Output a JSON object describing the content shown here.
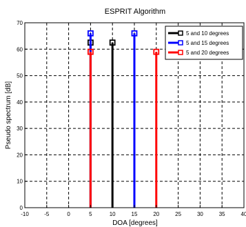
{
  "chart_data": {
    "type": "stem",
    "title": "ESPRIT Algorithm",
    "xlabel": "DOA [degrees]",
    "ylabel": "Pseudo spectrum [dB]",
    "xlim": [
      -10,
      40
    ],
    "ylim": [
      0,
      70
    ],
    "xticks": [
      -10,
      -5,
      0,
      5,
      10,
      15,
      20,
      25,
      30,
      35,
      40
    ],
    "yticks": [
      0,
      10,
      20,
      30,
      40,
      50,
      60,
      70
    ],
    "xtick_labels": [
      "-10",
      "-5",
      "0",
      "5",
      "10",
      "15",
      "20",
      "25",
      "30",
      "35",
      "40"
    ],
    "ytick_labels": [
      "0",
      "10",
      "20",
      "30",
      "40",
      "50",
      "60",
      "70"
    ],
    "grid": true,
    "grid_style": "dashed",
    "legend_position": "top-right",
    "series": [
      {
        "name": "5 and 10 degrees",
        "color": "#000000",
        "points": [
          {
            "x": 5,
            "y": 62.5
          },
          {
            "x": 10,
            "y": 62.5
          }
        ]
      },
      {
        "name": "5 and 15 degrees",
        "color": "#0000ff",
        "points": [
          {
            "x": 5,
            "y": 66
          },
          {
            "x": 15,
            "y": 66
          }
        ]
      },
      {
        "name": "5 and 20 degrees",
        "color": "#ff0000",
        "points": [
          {
            "x": 5,
            "y": 59
          },
          {
            "x": 20,
            "y": 59
          }
        ]
      }
    ]
  }
}
